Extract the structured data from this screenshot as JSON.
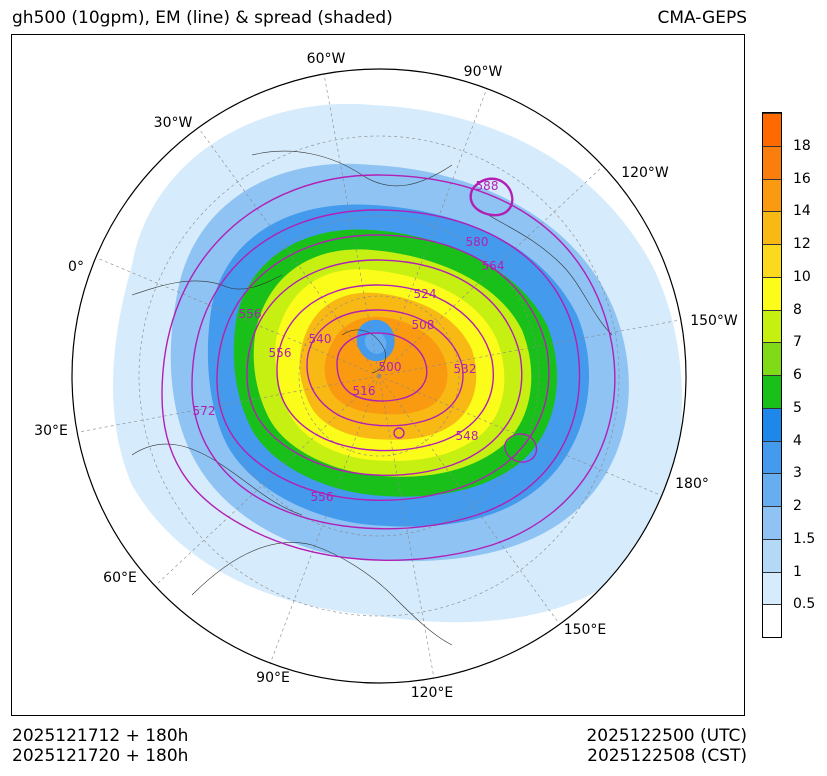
{
  "header": {
    "title_left": "gh500 (10gpm), EM (line) & spread (shaded)",
    "title_right": "CMA-GEPS"
  },
  "footer": {
    "init_utc": "2025121712 + 180h",
    "init_cst": "2025121720 + 180h",
    "valid_utc": "2025122500 (UTC)",
    "valid_cst": "2025122508 (CST)"
  },
  "map": {
    "projection": "north-polar-stereographic",
    "longitude_labels": [
      "60°W",
      "90°W",
      "30°W",
      "120°W",
      "0°",
      "150°W",
      "30°E",
      "180°",
      "60°E",
      "150°E",
      "90°E",
      "120°E"
    ],
    "contour_labels": [
      "588",
      "580",
      "564",
      "524",
      "556",
      "556",
      "540",
      "508",
      "500",
      "532",
      "516",
      "572",
      "548",
      "556"
    ],
    "contour_color": "#b21fb5"
  },
  "colorbar": {
    "ticks": [
      "18",
      "16",
      "14",
      "12",
      "10",
      "8",
      "7",
      "6",
      "5",
      "4",
      "3",
      "2",
      "1.5",
      "1",
      "0.5"
    ],
    "colors": [
      "#ffffff",
      "#d6ebfb",
      "#b4d9f7",
      "#8ec3f3",
      "#67aef0",
      "#449aec",
      "#1f86ea",
      "#19c019",
      "#7fdb17",
      "#c6ef12",
      "#fcfc1a",
      "#fbd91f",
      "#f9b915",
      "#f99a10",
      "#f97e0c",
      "#ff6a00"
    ]
  }
}
